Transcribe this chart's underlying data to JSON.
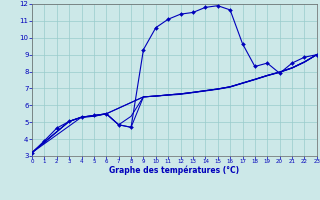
{
  "xlabel": "Graphe des températures (°C)",
  "bg_color": "#cce8e8",
  "grid_color": "#99cccc",
  "line_color": "#0000bb",
  "xlim": [
    0,
    23
  ],
  "ylim": [
    3,
    12
  ],
  "yticks": [
    3,
    4,
    5,
    6,
    7,
    8,
    9,
    10,
    11,
    12
  ],
  "xticks": [
    0,
    1,
    2,
    3,
    4,
    5,
    6,
    7,
    8,
    9,
    10,
    11,
    12,
    13,
    14,
    15,
    16,
    17,
    18,
    19,
    20,
    21,
    22,
    23
  ],
  "main_x": [
    0,
    1,
    2,
    3,
    4,
    5,
    6,
    7,
    8,
    9,
    10,
    11,
    12,
    13,
    14,
    15,
    16,
    17,
    18,
    19,
    20,
    21,
    22,
    23
  ],
  "main_y": [
    3.2,
    3.9,
    4.65,
    5.05,
    5.3,
    5.4,
    5.5,
    4.85,
    4.7,
    9.3,
    10.6,
    11.1,
    11.4,
    11.5,
    11.8,
    11.9,
    11.65,
    9.65,
    8.3,
    8.5,
    7.9,
    8.5,
    8.85,
    9.0
  ],
  "trend_lines": [
    {
      "x": [
        0,
        4,
        5,
        6,
        9,
        10,
        11,
        12,
        13,
        14,
        15,
        16,
        17,
        18,
        19,
        20,
        21,
        22,
        23
      ],
      "y": [
        3.2,
        5.3,
        5.4,
        5.5,
        6.5,
        6.55,
        6.6,
        6.65,
        6.75,
        6.85,
        6.95,
        7.08,
        7.3,
        7.52,
        7.75,
        7.95,
        8.2,
        8.55,
        9.0
      ]
    },
    {
      "x": [
        0,
        3,
        4,
        5,
        6,
        9,
        10,
        11,
        12,
        13,
        14,
        15,
        16,
        17,
        18,
        19,
        20,
        21,
        22,
        23
      ],
      "y": [
        3.2,
        5.05,
        5.3,
        5.4,
        5.5,
        6.5,
        6.55,
        6.62,
        6.68,
        6.77,
        6.87,
        6.97,
        7.1,
        7.32,
        7.54,
        7.77,
        7.97,
        8.22,
        8.57,
        9.0
      ]
    },
    {
      "x": [
        0,
        3,
        4,
        5,
        6,
        7,
        8,
        9,
        10,
        11,
        12,
        13,
        14,
        15,
        16,
        17,
        18,
        19,
        20,
        21,
        22,
        23
      ],
      "y": [
        3.2,
        5.05,
        5.3,
        5.35,
        5.5,
        4.85,
        4.7,
        6.5,
        6.55,
        6.62,
        6.68,
        6.77,
        6.87,
        6.97,
        7.1,
        7.32,
        7.54,
        7.77,
        7.97,
        8.22,
        8.57,
        9.0
      ]
    },
    {
      "x": [
        0,
        3,
        4,
        5,
        6,
        7,
        8,
        9,
        10,
        11,
        12,
        13,
        14,
        15,
        16,
        17,
        18,
        19,
        20,
        21,
        22,
        23
      ],
      "y": [
        3.2,
        5.05,
        5.3,
        5.35,
        5.5,
        4.85,
        5.35,
        6.5,
        6.55,
        6.62,
        6.68,
        6.77,
        6.87,
        6.97,
        7.1,
        7.32,
        7.54,
        7.77,
        7.97,
        8.22,
        8.57,
        9.0
      ]
    }
  ]
}
